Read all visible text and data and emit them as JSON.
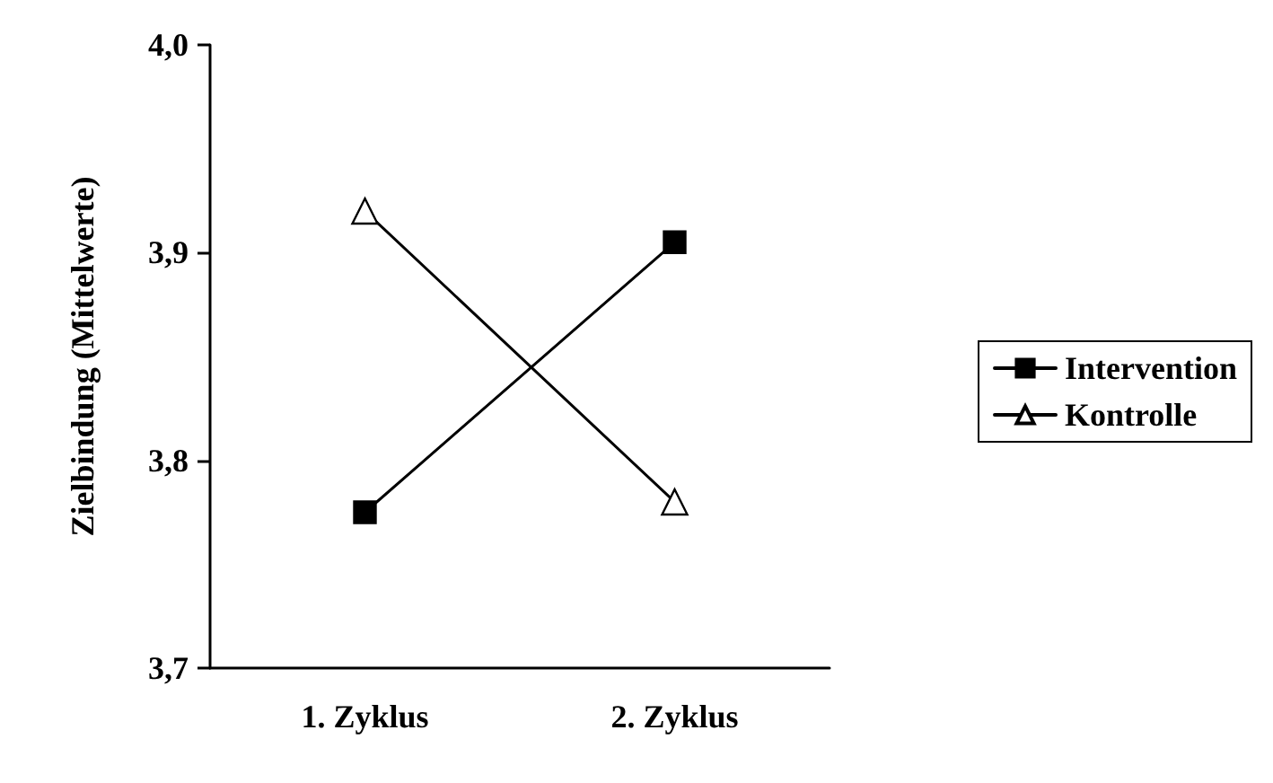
{
  "chart_data": {
    "type": "line",
    "ylabel": "Zielbindung (Mittelwerte)",
    "categories": [
      "1. Zyklus",
      "2. Zyklus"
    ],
    "series": [
      {
        "name": "Intervention",
        "color": "#000000",
        "marker": "square",
        "values": [
          3.775,
          3.905
        ]
      },
      {
        "name": "Kontrolle",
        "color": "#000000",
        "marker": "triangle",
        "values": [
          3.92,
          3.78
        ]
      }
    ],
    "ylim": [
      3.7,
      4.0
    ],
    "yticks": [
      {
        "value": 3.7,
        "label": "3,7"
      },
      {
        "value": 3.8,
        "label": "3,8"
      },
      {
        "value": 3.9,
        "label": "3,9"
      },
      {
        "value": 4.0,
        "label": "4,0"
      }
    ],
    "grid": false,
    "legend": "right",
    "line_style": "solid"
  }
}
